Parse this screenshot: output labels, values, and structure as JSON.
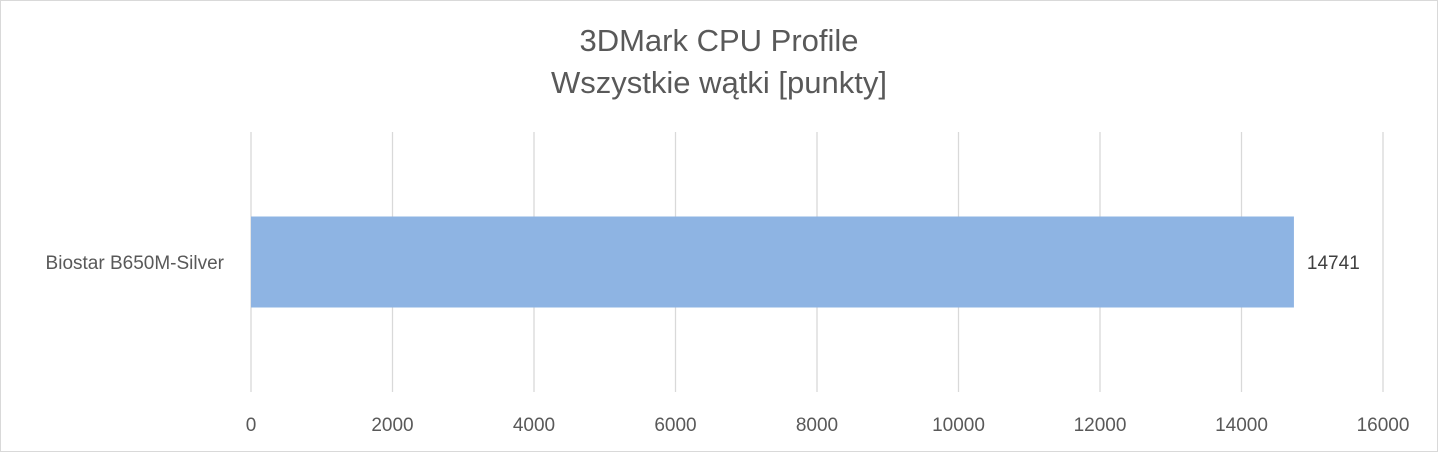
{
  "chart_data": {
    "type": "bar",
    "orientation": "horizontal",
    "title": "3DMark CPU Profile",
    "subtitle": "Wszystkie wątki [punkty]",
    "categories": [
      "Biostar B650M-Silver"
    ],
    "series": [
      {
        "values": [
          14741
        ],
        "color": "#8eb4e3"
      }
    ],
    "data_labels": [
      "14741"
    ],
    "xlim": [
      0,
      16000
    ],
    "x_ticks": [
      0,
      2000,
      4000,
      6000,
      8000,
      10000,
      12000,
      14000,
      16000
    ],
    "x_tick_labels": [
      "0",
      "2000",
      "4000",
      "6000",
      "8000",
      "10000",
      "12000",
      "14000",
      "16000"
    ],
    "grid": true,
    "gridline_color": "#d9d9d9",
    "legend": "none"
  }
}
